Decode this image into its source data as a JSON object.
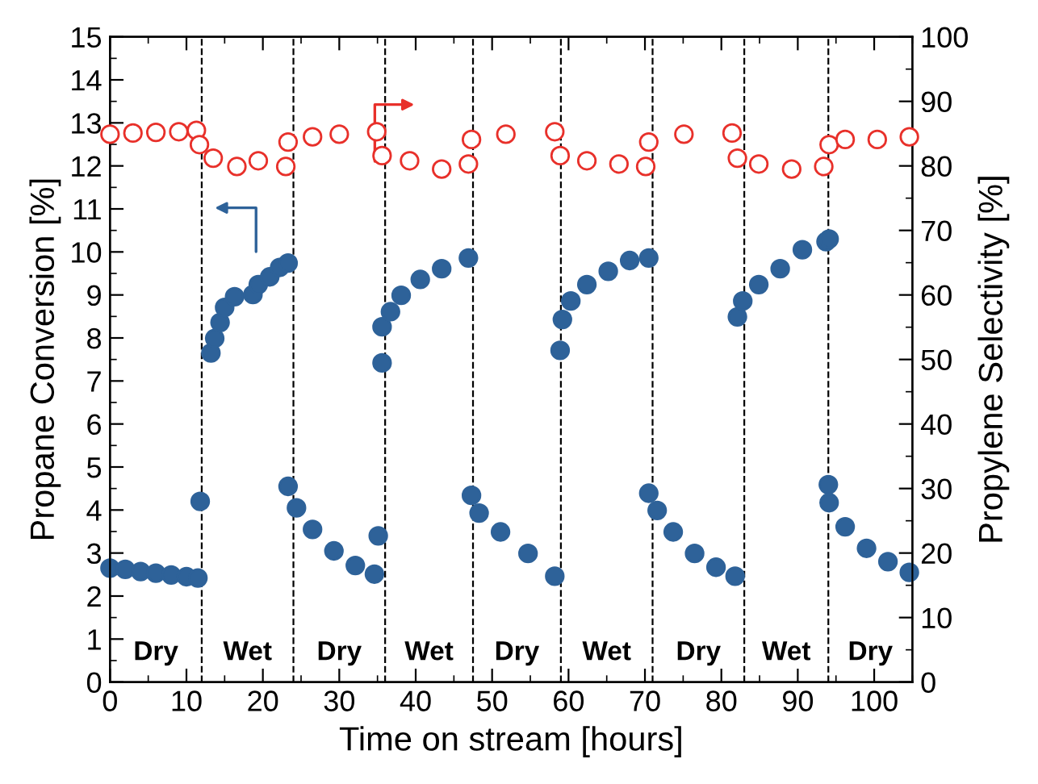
{
  "chart_data": {
    "type": "scatter",
    "xlabel": "Time on stream [hours]",
    "ylabel": "Propane Conversion [%]",
    "y2label": "Propylene Selectivity [%]",
    "xlim": [
      0,
      105
    ],
    "xticks": [
      0,
      10,
      20,
      30,
      40,
      50,
      60,
      70,
      80,
      90,
      100
    ],
    "ylim": [
      0,
      15
    ],
    "yticks": [
      0,
      1,
      2,
      3,
      4,
      5,
      6,
      7,
      8,
      9,
      10,
      11,
      12,
      13,
      14,
      15
    ],
    "y2lim": [
      0,
      100
    ],
    "y2ticks": [
      0,
      10,
      20,
      30,
      40,
      50,
      60,
      70,
      80,
      90,
      100
    ],
    "grid": false,
    "series": [
      {
        "color": "#2e6299",
        "marker": "circle",
        "x": [
          0,
          2,
          4,
          6,
          8,
          10,
          11.5,
          11.8,
          13.2,
          13.7,
          14.4,
          15.0,
          16.3,
          18.7,
          19.4,
          20.9,
          22.2,
          23.3,
          23.3,
          24.4,
          26.5,
          29.3,
          32.1,
          34.6,
          35.1,
          35.6,
          35.6,
          36.7,
          38.1,
          40.6,
          43.4,
          46.9,
          47.3,
          48.3,
          51.1,
          54.7,
          58.2,
          58.9,
          59.2,
          60.3,
          62.4,
          65.2,
          68.0,
          70.5,
          70.5,
          71.6,
          73.7,
          76.5,
          79.3,
          81.8,
          82.1,
          82.8,
          84.9,
          87.7,
          90.6,
          93.7,
          94.1,
          94.0,
          94.1,
          96.2,
          99.0,
          101.8,
          104.6
        ],
        "values": [
          2.65,
          2.62,
          2.57,
          2.53,
          2.49,
          2.45,
          2.42,
          4.2,
          7.65,
          7.99,
          8.36,
          8.71,
          8.96,
          9.01,
          9.24,
          9.42,
          9.64,
          9.74,
          4.55,
          4.05,
          3.55,
          3.05,
          2.71,
          2.51,
          3.4,
          7.42,
          8.26,
          8.61,
          8.99,
          9.36,
          9.61,
          9.86,
          4.34,
          3.93,
          3.49,
          2.99,
          2.46,
          7.71,
          8.43,
          8.86,
          9.24,
          9.55,
          9.8,
          9.86,
          4.39,
          3.99,
          3.49,
          2.99,
          2.67,
          2.46,
          8.49,
          8.86,
          9.24,
          9.61,
          10.05,
          10.24,
          10.3,
          4.59,
          4.17,
          3.61,
          3.11,
          2.8,
          2.55
        ]
      },
      {
        "color": "#e8302a",
        "marker": "circle",
        "axis": "y2",
        "x": [
          0,
          3,
          6,
          9,
          11.3,
          11.7,
          13.5,
          16.6,
          19.4,
          23.0,
          23.3,
          26.5,
          30.0,
          34.9,
          35.6,
          39.2,
          43.4,
          46.9,
          47.3,
          51.8,
          58.2,
          58.9,
          62.4,
          66.6,
          70.1,
          70.5,
          75.1,
          81.4,
          82.1,
          84.9,
          89.2,
          93.4,
          94.1,
          96.2,
          100.4,
          104.6
        ],
        "values": [
          84.9,
          85.1,
          85.2,
          85.3,
          85.5,
          83.3,
          81.2,
          79.9,
          80.8,
          79.9,
          83.7,
          84.5,
          84.9,
          85.3,
          81.6,
          80.8,
          79.5,
          80.3,
          84.1,
          84.9,
          85.3,
          81.6,
          80.8,
          80.3,
          79.9,
          83.7,
          84.9,
          85.1,
          81.2,
          80.3,
          79.5,
          79.9,
          83.3,
          84.1,
          84.1,
          84.5
        ]
      }
    ],
    "ref_lines": [
      {
        "axis": "x",
        "value": 12,
        "line_style": "dashed"
      },
      {
        "axis": "x",
        "value": 24,
        "line_style": "dashed"
      },
      {
        "axis": "x",
        "value": 36,
        "line_style": "dashed"
      },
      {
        "axis": "x",
        "value": 47.5,
        "line_style": "dashed"
      },
      {
        "axis": "x",
        "value": 59,
        "line_style": "dashed"
      },
      {
        "axis": "x",
        "value": 71,
        "line_style": "dashed"
      },
      {
        "axis": "x",
        "value": 83,
        "line_style": "dashed"
      },
      {
        "axis": "x",
        "value": 94,
        "line_style": "dashed"
      }
    ],
    "annotations": [
      "Dry",
      "Wet",
      "Dry",
      "Wet",
      "Dry",
      "Wet",
      "Dry",
      "Wet",
      "Dry"
    ]
  }
}
